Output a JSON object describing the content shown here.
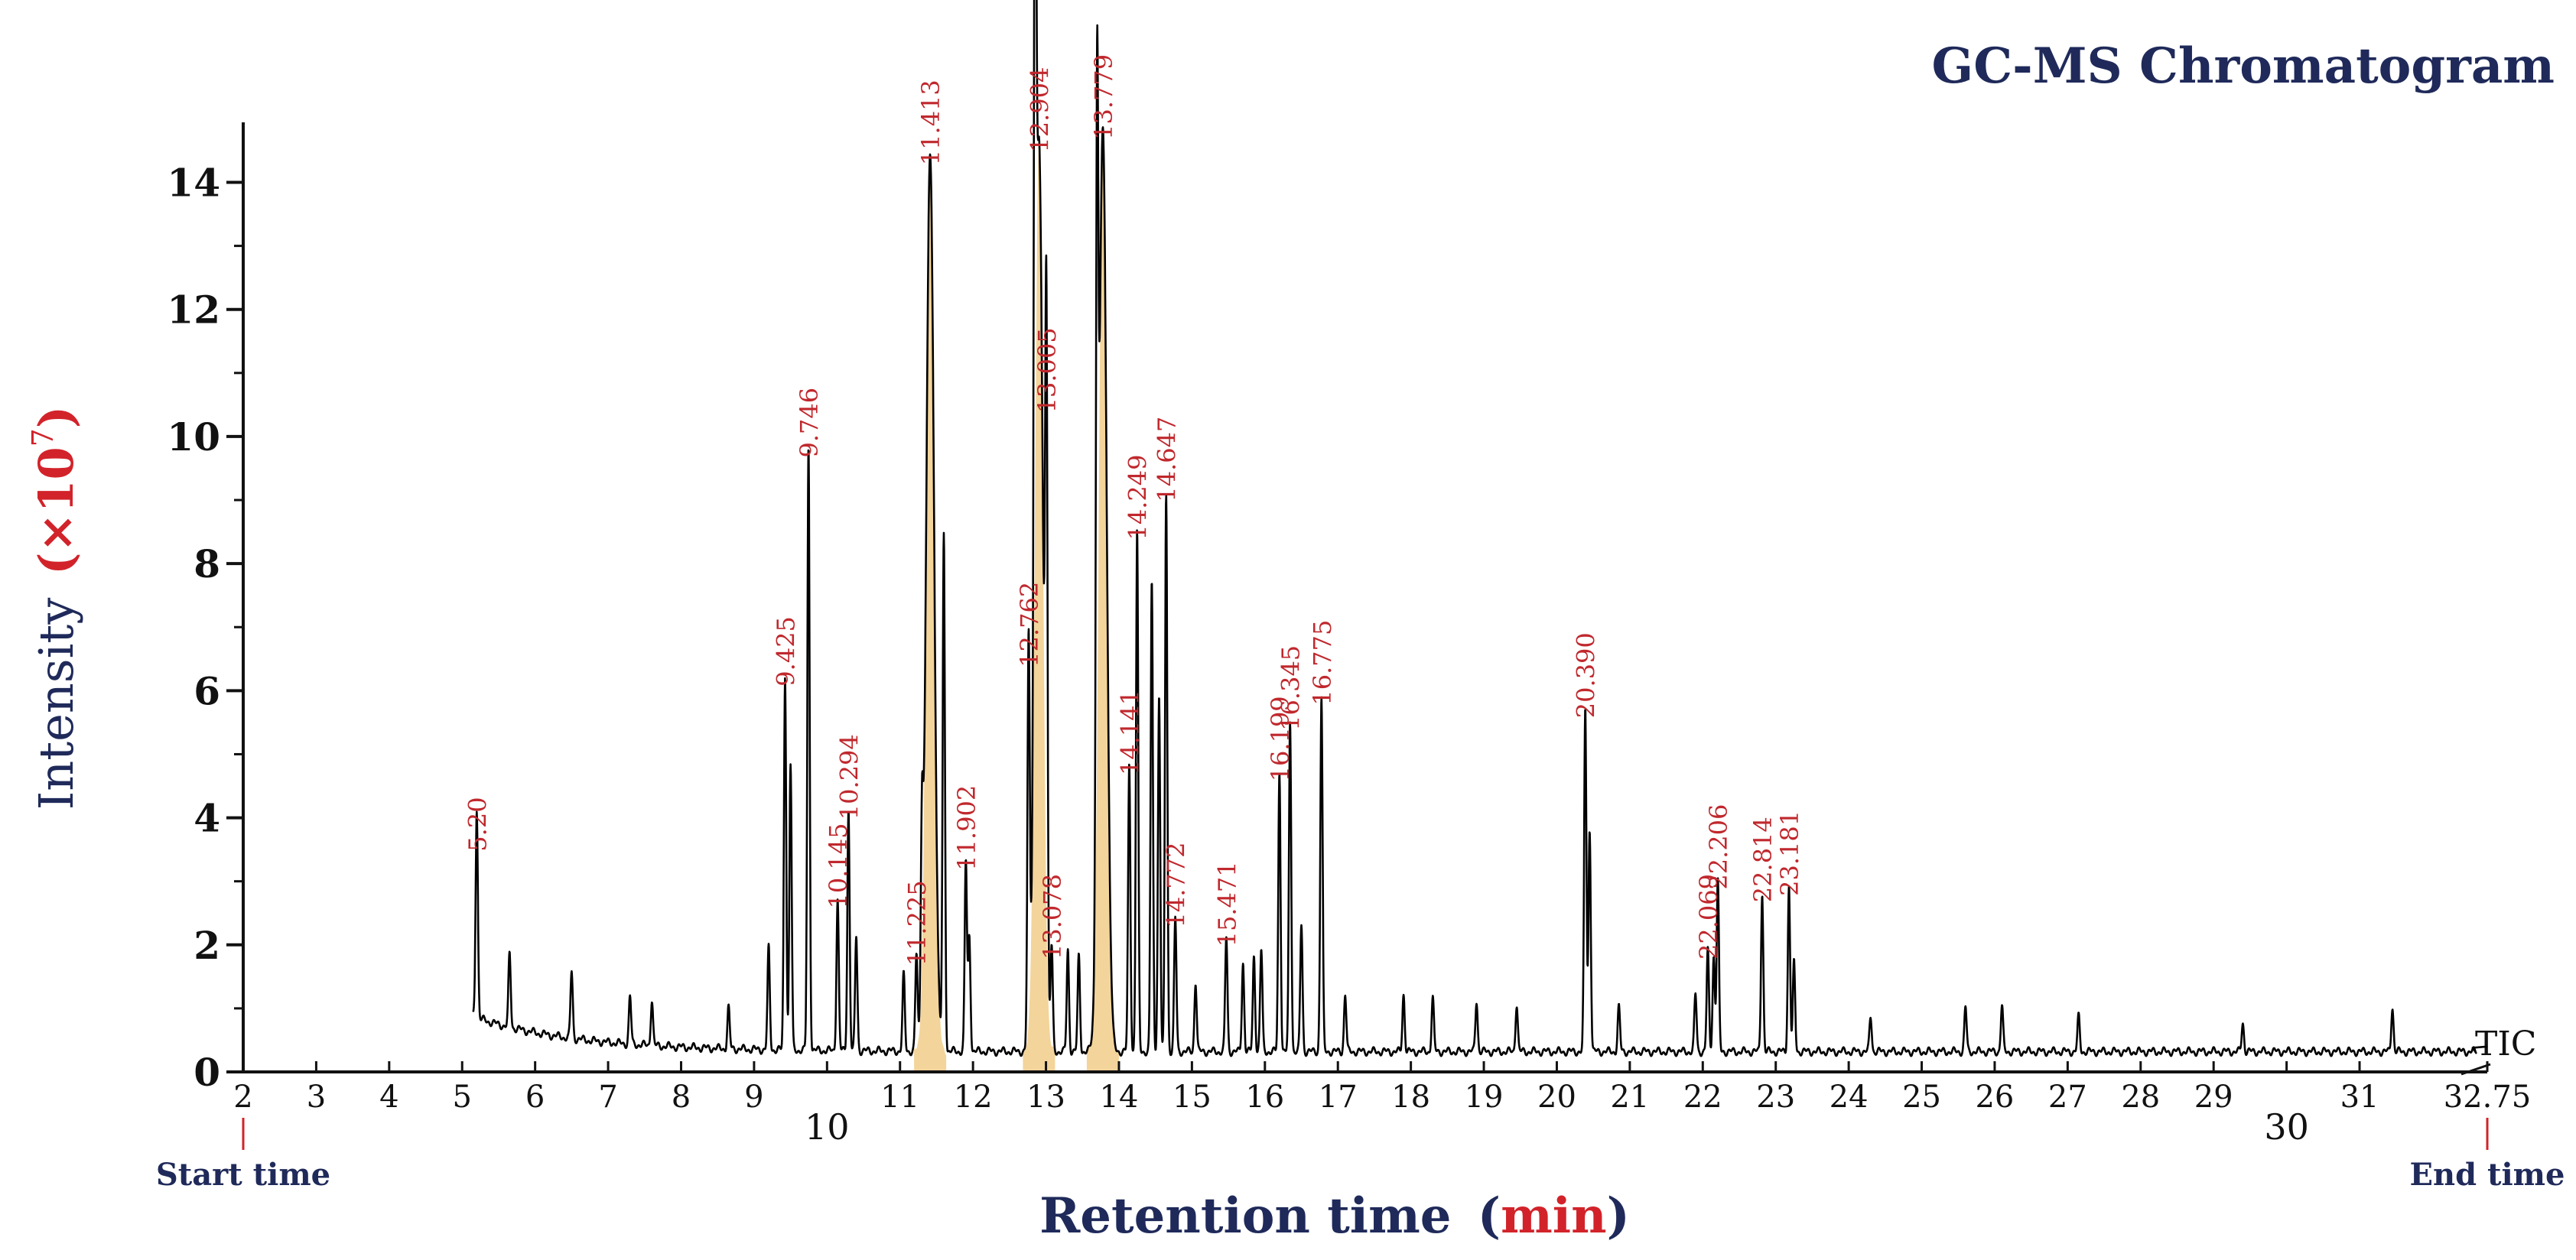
{
  "chart_data": {
    "type": "line",
    "title": "GC-MS Chromatogram",
    "xlabel": "Retention time",
    "xlabel_unit": "min",
    "ylabel": "Intensity",
    "ylabel_unit": "×10",
    "ylabel_exponent": "7",
    "xlim": [
      2,
      32.75
    ],
    "ylim": [
      0,
      14.8
    ],
    "x_ticks_top": [
      "2",
      "3",
      "4",
      "5",
      "6",
      "7",
      "8",
      "9",
      "11",
      "12",
      "13",
      "14",
      "15",
      "16",
      "17",
      "18",
      "19",
      "20",
      "21",
      "22",
      "23",
      "24",
      "25",
      "26",
      "27",
      "28",
      "29",
      "31",
      "32.75"
    ],
    "x_ticks_top_values": [
      2,
      3,
      4,
      5,
      6,
      7,
      8,
      9,
      11,
      12,
      13,
      14,
      15,
      16,
      17,
      18,
      19,
      20,
      21,
      22,
      23,
      24,
      25,
      26,
      27,
      28,
      29,
      31,
      32.75
    ],
    "x_ticks_low": [
      "10",
      "30"
    ],
    "x_ticks_low_values": [
      10,
      30
    ],
    "y_ticks": [
      "0",
      "2",
      "4",
      "6",
      "8",
      "10",
      "12",
      "14"
    ],
    "y_tick_values": [
      0,
      2,
      4,
      6,
      8,
      10,
      12,
      14
    ],
    "start_label": "Start time",
    "end_label": "End time",
    "series_label": "TIC",
    "peaks": [
      {
        "rt": 5.2,
        "height": 3.3,
        "label": "5.20",
        "highlight": false
      },
      {
        "rt": 9.425,
        "height": 5.9,
        "label": "9.425",
        "highlight": false
      },
      {
        "rt": 9.746,
        "height": 9.5,
        "label": "9.746",
        "highlight": false
      },
      {
        "rt": 10.145,
        "height": 2.4,
        "label": "10.145",
        "highlight": false
      },
      {
        "rt": 10.294,
        "height": 3.8,
        "label": "10.294",
        "highlight": false
      },
      {
        "rt": 11.225,
        "height": 1.5,
        "label": "11.225",
        "highlight": false
      },
      {
        "rt": 11.413,
        "height": 14.1,
        "label": "11.413",
        "highlight": true
      },
      {
        "rt": 11.902,
        "height": 3.0,
        "label": "11.902",
        "highlight": false
      },
      {
        "rt": 12.762,
        "height": 6.2,
        "label": "12.762",
        "highlight": false
      },
      {
        "rt": 12.904,
        "height": 14.3,
        "label": "12.904",
        "highlight": true
      },
      {
        "rt": 13.005,
        "height": 10.2,
        "label": "13.005",
        "highlight": false
      },
      {
        "rt": 13.078,
        "height": 1.6,
        "label": "13.078",
        "highlight": false
      },
      {
        "rt": 13.779,
        "height": 14.5,
        "label": "13.779",
        "highlight": true
      },
      {
        "rt": 14.141,
        "height": 4.5,
        "label": "14.141",
        "highlight": false
      },
      {
        "rt": 14.249,
        "height": 8.2,
        "label": "14.249",
        "highlight": false
      },
      {
        "rt": 14.647,
        "height": 8.8,
        "label": "14.647",
        "highlight": false
      },
      {
        "rt": 14.772,
        "height": 2.1,
        "label": "14.772",
        "highlight": false
      },
      {
        "rt": 15.471,
        "height": 1.8,
        "label": "15.471",
        "highlight": false
      },
      {
        "rt": 16.199,
        "height": 4.4,
        "label": "16.199",
        "highlight": false
      },
      {
        "rt": 16.345,
        "height": 5.2,
        "label": "16.345",
        "highlight": false
      },
      {
        "rt": 16.775,
        "height": 5.6,
        "label": "16.775",
        "highlight": false
      },
      {
        "rt": 20.39,
        "height": 5.4,
        "label": "20.390",
        "highlight": false
      },
      {
        "rt": 22.069,
        "height": 1.6,
        "label": "22.069",
        "highlight": false
      },
      {
        "rt": 22.206,
        "height": 2.7,
        "label": "22.206",
        "highlight": false
      },
      {
        "rt": 22.814,
        "height": 2.5,
        "label": "22.814",
        "highlight": false
      },
      {
        "rt": 23.181,
        "height": 2.6,
        "label": "23.181",
        "highlight": false
      }
    ],
    "minor_peaks": [
      {
        "rt": 5.65,
        "height": 1.15
      },
      {
        "rt": 6.5,
        "height": 1.05
      },
      {
        "rt": 7.3,
        "height": 0.75
      },
      {
        "rt": 7.6,
        "height": 0.72
      },
      {
        "rt": 8.65,
        "height": 0.65
      },
      {
        "rt": 9.2,
        "height": 1.6
      },
      {
        "rt": 9.5,
        "height": 4.5
      },
      {
        "rt": 10.4,
        "height": 1.8
      },
      {
        "rt": 11.05,
        "height": 1.2
      },
      {
        "rt": 11.3,
        "height": 2.8
      },
      {
        "rt": 11.6,
        "height": 8.1
      },
      {
        "rt": 11.95,
        "height": 1.8
      },
      {
        "rt": 12.85,
        "height": 13.5
      },
      {
        "rt": 13.3,
        "height": 1.6
      },
      {
        "rt": 13.45,
        "height": 1.5
      },
      {
        "rt": 13.7,
        "height": 11.2
      },
      {
        "rt": 14.45,
        "height": 7.4
      },
      {
        "rt": 14.55,
        "height": 5.6
      },
      {
        "rt": 15.05,
        "height": 1.1
      },
      {
        "rt": 15.7,
        "height": 1.4
      },
      {
        "rt": 15.85,
        "height": 1.5
      },
      {
        "rt": 15.95,
        "height": 1.6
      },
      {
        "rt": 16.5,
        "height": 2.0
      },
      {
        "rt": 17.1,
        "height": 0.9
      },
      {
        "rt": 17.9,
        "height": 0.9
      },
      {
        "rt": 18.3,
        "height": 0.85
      },
      {
        "rt": 18.9,
        "height": 0.8
      },
      {
        "rt": 19.45,
        "height": 0.75
      },
      {
        "rt": 20.45,
        "height": 3.5
      },
      {
        "rt": 20.85,
        "height": 0.7
      },
      {
        "rt": 21.9,
        "height": 0.9
      },
      {
        "rt": 22.15,
        "height": 1.5
      },
      {
        "rt": 23.25,
        "height": 1.4
      },
      {
        "rt": 24.3,
        "height": 0.55
      },
      {
        "rt": 25.6,
        "height": 0.7
      },
      {
        "rt": 26.1,
        "height": 0.72
      },
      {
        "rt": 27.15,
        "height": 0.55
      },
      {
        "rt": 29.4,
        "height": 0.45
      },
      {
        "rt": 31.45,
        "height": 0.7
      }
    ],
    "colors": {
      "trace": "#000000",
      "highlight_fill": "#f3d49a",
      "peak_label": "#c0282d",
      "title": "#1f2a5a",
      "axis": "#111111",
      "unit_accent": "#d2232a"
    }
  }
}
